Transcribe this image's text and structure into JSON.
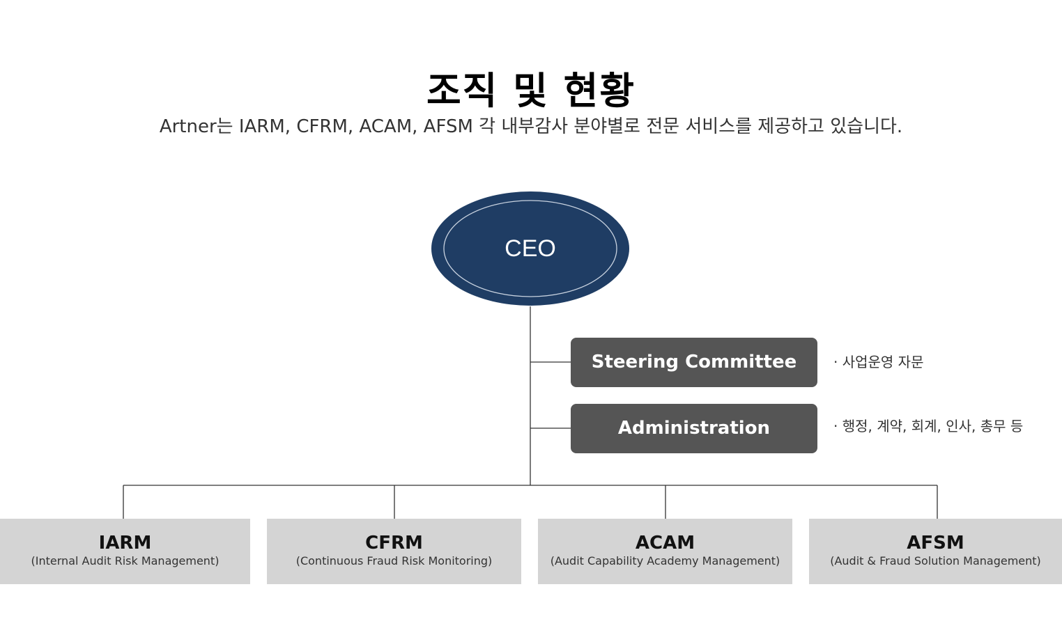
{
  "header": {
    "title": "조직 및 현황",
    "subtitle": "Artner는 IARM, CFRM, ACAM, AFSM 각 내부감사 분야별로 전문 서비스를 제공하고 있습니다."
  },
  "org": {
    "ceo": {
      "label": "CEO"
    },
    "staff": [
      {
        "name": "Steering Committee",
        "note": "· 사업운영 자문"
      },
      {
        "name": "Administration",
        "note": "· 행정, 계약, 회계, 인사, 총무 등"
      }
    ],
    "divisions": [
      {
        "code": "IARM",
        "full": "(Internal Audit Risk Management)"
      },
      {
        "code": "CFRM",
        "full": "(Continuous Fraud Risk Monitoring)"
      },
      {
        "code": "ACAM",
        "full": "(Audit Capability Academy Management)"
      },
      {
        "code": "AFSM",
        "full": "(Audit & Fraud Solution Management)"
      }
    ]
  },
  "colors": {
    "ceo_fill": "#1f3d64",
    "staff_fill": "#555555",
    "division_fill": "#d4d4d4",
    "line": "#333333"
  }
}
